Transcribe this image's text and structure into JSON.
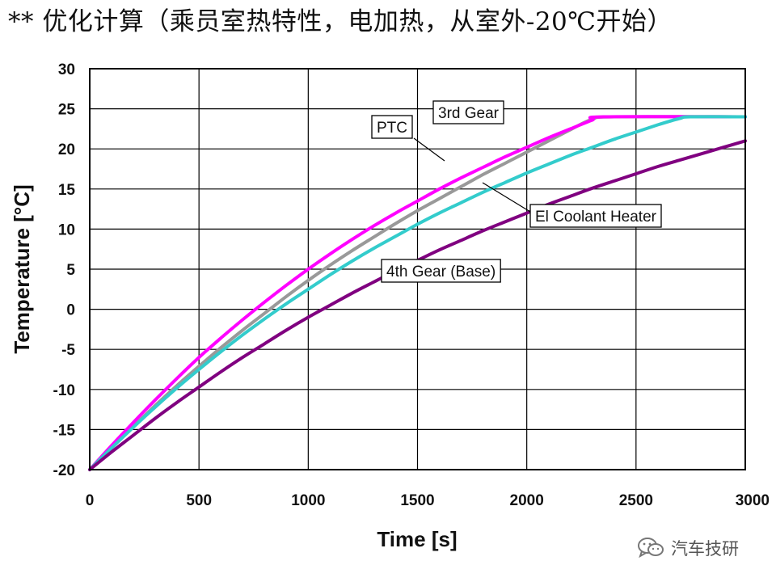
{
  "title": "** 优化计算（乘员室热特性，电加热，从室外-20℃开始）",
  "watermark": "汽车技研",
  "chart_data": {
    "type": "line",
    "xlabel": "Time [s]",
    "ylabel": "Temperature [°C]",
    "xlim": [
      0,
      3000
    ],
    "ylim": [
      -20,
      30
    ],
    "x_ticks": [
      0,
      500,
      1000,
      1500,
      2000,
      2500,
      3000
    ],
    "y_ticks": [
      -20,
      -15,
      -10,
      -5,
      0,
      5,
      10,
      15,
      20,
      25,
      30
    ],
    "grid": true,
    "series": [
      {
        "name": "3rd Gear",
        "color": "#999999",
        "points": [
          [
            0,
            -20
          ],
          [
            100,
            -17.3
          ],
          [
            200,
            -14.6
          ],
          [
            300,
            -12.0
          ],
          [
            400,
            -9.5
          ],
          [
            500,
            -7.1
          ],
          [
            600,
            -4.8
          ],
          [
            700,
            -2.6
          ],
          [
            800,
            -0.5
          ],
          [
            900,
            1.6
          ],
          [
            1000,
            3.6
          ],
          [
            1100,
            5.5
          ],
          [
            1200,
            7.3
          ],
          [
            1300,
            9.0
          ],
          [
            1400,
            10.7
          ],
          [
            1500,
            12.3
          ],
          [
            1600,
            13.8
          ],
          [
            1700,
            15.3
          ],
          [
            1800,
            16.8
          ],
          [
            1900,
            18.2
          ],
          [
            2000,
            19.6
          ],
          [
            2100,
            21.0
          ],
          [
            2200,
            22.4
          ],
          [
            2300,
            23.7
          ],
          [
            2400,
            24.0
          ],
          [
            3000,
            24.0
          ]
        ]
      },
      {
        "name": "PTC",
        "color": "#ff00ff",
        "points": [
          [
            0,
            -20
          ],
          [
            100,
            -17.0
          ],
          [
            200,
            -14.1
          ],
          [
            300,
            -11.3
          ],
          [
            400,
            -8.6
          ],
          [
            500,
            -6.0
          ],
          [
            600,
            -3.6
          ],
          [
            700,
            -1.3
          ],
          [
            800,
            0.9
          ],
          [
            900,
            3.0
          ],
          [
            1000,
            5.0
          ],
          [
            1100,
            6.9
          ],
          [
            1200,
            8.7
          ],
          [
            1300,
            10.4
          ],
          [
            1400,
            12.0
          ],
          [
            1500,
            13.5
          ],
          [
            1600,
            15.0
          ],
          [
            1700,
            16.4
          ],
          [
            1800,
            17.7
          ],
          [
            1900,
            19.0
          ],
          [
            2000,
            20.2
          ],
          [
            2100,
            21.4
          ],
          [
            2200,
            22.5
          ],
          [
            2300,
            23.6
          ],
          [
            2350,
            24.0
          ],
          [
            3000,
            24.0
          ]
        ]
      },
      {
        "name": "El Coolant Heater",
        "color": "#33cccc",
        "points": [
          [
            0,
            -20
          ],
          [
            100,
            -17.3
          ],
          [
            200,
            -14.7
          ],
          [
            300,
            -12.2
          ],
          [
            400,
            -9.8
          ],
          [
            500,
            -7.5
          ],
          [
            600,
            -5.3
          ],
          [
            700,
            -3.2
          ],
          [
            800,
            -1.2
          ],
          [
            900,
            0.7
          ],
          [
            1000,
            2.5
          ],
          [
            1100,
            4.3
          ],
          [
            1200,
            6.0
          ],
          [
            1300,
            7.6
          ],
          [
            1400,
            9.1
          ],
          [
            1500,
            10.6
          ],
          [
            1600,
            12.0
          ],
          [
            1700,
            13.3
          ],
          [
            1800,
            14.6
          ],
          [
            1900,
            15.8
          ],
          [
            2000,
            17.0
          ],
          [
            2100,
            18.1
          ],
          [
            2200,
            19.2
          ],
          [
            2300,
            20.2
          ],
          [
            2400,
            21.2
          ],
          [
            2500,
            22.1
          ],
          [
            2600,
            23.0
          ],
          [
            2700,
            23.8
          ],
          [
            2750,
            24.0
          ],
          [
            3000,
            24.0
          ]
        ]
      },
      {
        "name": "4th Gear (Base)",
        "color": "#800080",
        "points": [
          [
            0,
            -20
          ],
          [
            100,
            -17.8
          ],
          [
            200,
            -15.7
          ],
          [
            300,
            -13.6
          ],
          [
            400,
            -11.6
          ],
          [
            500,
            -9.7
          ],
          [
            600,
            -7.8
          ],
          [
            700,
            -6.0
          ],
          [
            800,
            -4.3
          ],
          [
            900,
            -2.6
          ],
          [
            1000,
            -1.0
          ],
          [
            1100,
            0.5
          ],
          [
            1200,
            2.0
          ],
          [
            1300,
            3.4
          ],
          [
            1400,
            4.8
          ],
          [
            1500,
            6.1
          ],
          [
            1600,
            7.4
          ],
          [
            1700,
            8.6
          ],
          [
            1800,
            9.8
          ],
          [
            1900,
            10.9
          ],
          [
            2000,
            12.0
          ],
          [
            2100,
            13.1
          ],
          [
            2200,
            14.1
          ],
          [
            2300,
            15.1
          ],
          [
            2400,
            16.0
          ],
          [
            2500,
            16.9
          ],
          [
            2600,
            17.8
          ],
          [
            2700,
            18.6
          ],
          [
            2800,
            19.4
          ],
          [
            2900,
            20.2
          ],
          [
            3000,
            21.0
          ]
        ]
      }
    ],
    "annotations": [
      {
        "text": "3rd Gear",
        "series": "3rd Gear",
        "leader": false
      },
      {
        "text": "PTC",
        "series": "PTC",
        "leader": true
      },
      {
        "text": "El Coolant Heater",
        "series": "El Coolant Heater",
        "leader": true
      },
      {
        "text": "4th Gear (Base)",
        "series": "4th Gear (Base)",
        "leader": false
      }
    ]
  }
}
